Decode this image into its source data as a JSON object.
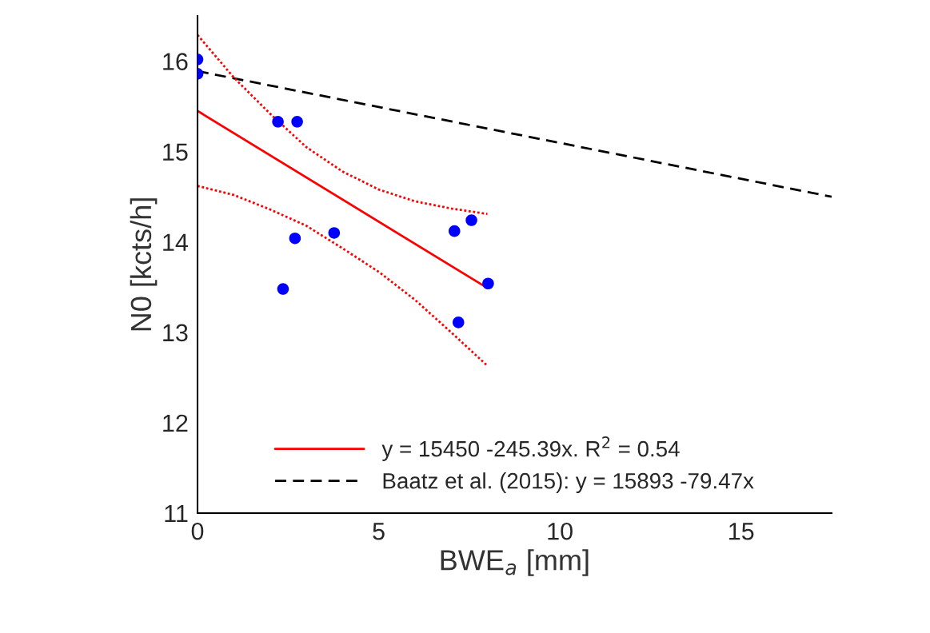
{
  "chart_data": {
    "type": "scatter",
    "xlabel": "BWE$_{a}$ [mm]",
    "ylabel": "N0 [kcts/h]",
    "xlim": [
      0,
      17.5
    ],
    "ylim": [
      11,
      16.5
    ],
    "xticks": [
      0,
      5,
      10,
      15
    ],
    "yticks": [
      11,
      12,
      13,
      14,
      15,
      16
    ],
    "grid": false,
    "legend": "bottom",
    "series": [
      {
        "marker": "circle",
        "color": "#0000ff",
        "x": [
          0,
          0,
          2.22,
          2.75,
          2.36,
          2.69,
          3.77,
          7.09,
          7.56,
          7.2,
          8.02
        ],
        "values": [
          16.02,
          15.86,
          15.33,
          15.33,
          13.48,
          14.04,
          14.1,
          14.12,
          14.24,
          13.11,
          13.54
        ]
      },
      {
        "type": "line",
        "name": "y = 15450 -245.39x. R$^{2}$ = 0.54",
        "color": "#ff0000",
        "marker": "none",
        "line_style": "solid",
        "x": [
          0,
          8
        ],
        "values": [
          15.45,
          13.49
        ]
      },
      {
        "type": "line",
        "name": "Baatz et al. (2015): y = 15893 -79.47x",
        "color": "#000000",
        "marker": "none",
        "line_style": "dashed",
        "x": [
          0,
          17.5
        ],
        "values": [
          15.89,
          14.5
        ]
      },
      {
        "type": "line",
        "color": "#ff0000",
        "marker": "none",
        "line_style": "dotted",
        "x": [
          0,
          1,
          2,
          3,
          4,
          5,
          6,
          7,
          8
        ],
        "values": [
          16.29,
          15.82,
          15.42,
          15.05,
          14.78,
          14.58,
          14.45,
          14.37,
          14.31
        ]
      },
      {
        "type": "line",
        "color": "#ff0000",
        "marker": "none",
        "line_style": "dotted",
        "x": [
          0,
          1,
          2,
          3,
          4,
          5,
          6,
          7,
          8
        ],
        "values": [
          14.62,
          14.52,
          14.36,
          14.18,
          13.93,
          13.67,
          13.36,
          13.0,
          12.63
        ]
      }
    ]
  }
}
